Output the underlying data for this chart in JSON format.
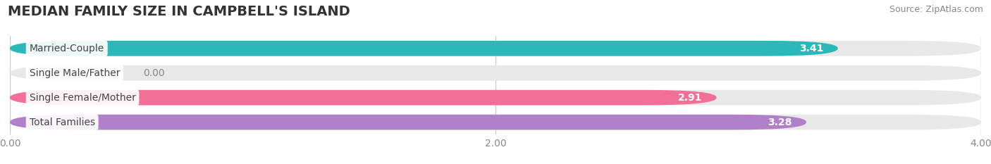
{
  "title": "MEDIAN FAMILY SIZE IN CAMPBELL'S ISLAND",
  "source": "Source: ZipAtlas.com",
  "categories": [
    "Married-Couple",
    "Single Male/Father",
    "Single Female/Mother",
    "Total Families"
  ],
  "values": [
    3.41,
    0.0,
    2.91,
    3.28
  ],
  "bar_colors": [
    "#2ab8b8",
    "#aab8e0",
    "#f07098",
    "#b080c8"
  ],
  "xlim": [
    0,
    4.0
  ],
  "xticks": [
    0.0,
    2.0,
    4.0
  ],
  "xtick_labels": [
    "0.00",
    "2.00",
    "4.00"
  ],
  "background_color": "#ffffff",
  "bar_bg_color": "#e8e8e8",
  "title_fontsize": 14,
  "label_fontsize": 10,
  "value_fontsize": 10,
  "source_fontsize": 9
}
